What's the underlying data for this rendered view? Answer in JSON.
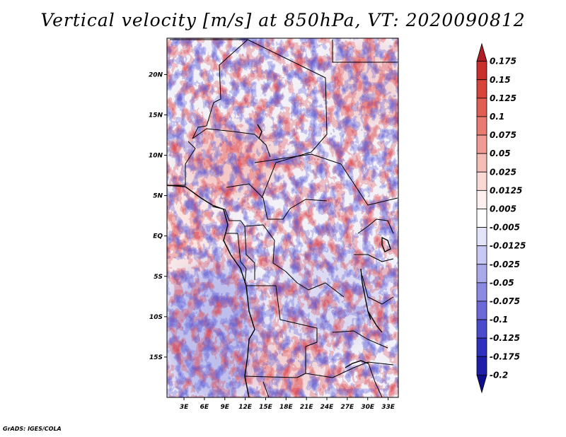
{
  "title": "Vertical velocity [m/s] at 850hPa, VT: 2020090812",
  "credit": "GrADS: IGES/COLA",
  "map": {
    "lat_ticks": [
      "20N",
      "15N",
      "10N",
      "5N",
      "EQ",
      "5S",
      "10S",
      "15S"
    ],
    "lon_ticks": [
      "3E",
      "6E",
      "9E",
      "12E",
      "15E",
      "18E",
      "21E",
      "24E",
      "27E",
      "30E",
      "33E"
    ],
    "lon_range": [
      0.5,
      34.5
    ],
    "lat_range": [
      -20,
      24.5
    ]
  },
  "colorbar": {
    "labels": [
      "0.175",
      "0.15",
      "0.125",
      "0.1",
      "0.075",
      "0.05",
      "0.025",
      "0.0125",
      "0.005",
      "-0.005",
      "-0.0125",
      "-0.025",
      "-0.05",
      "-0.075",
      "-0.1",
      "-0.125",
      "-0.175",
      "-0.2"
    ],
    "colors": [
      "#b01e24",
      "#c8302c",
      "#d8443a",
      "#e25d52",
      "#ea7b72",
      "#f09b94",
      "#f6bcb6",
      "#fad9d5",
      "#fdf0ee",
      "#ffffff",
      "#e3e3fa",
      "#c8c8f4",
      "#a9a9ec",
      "#8a8ae3",
      "#6a6ad9",
      "#4b4bcd",
      "#3030bf",
      "#1e1ea8",
      "#0e0e8c"
    ]
  }
}
